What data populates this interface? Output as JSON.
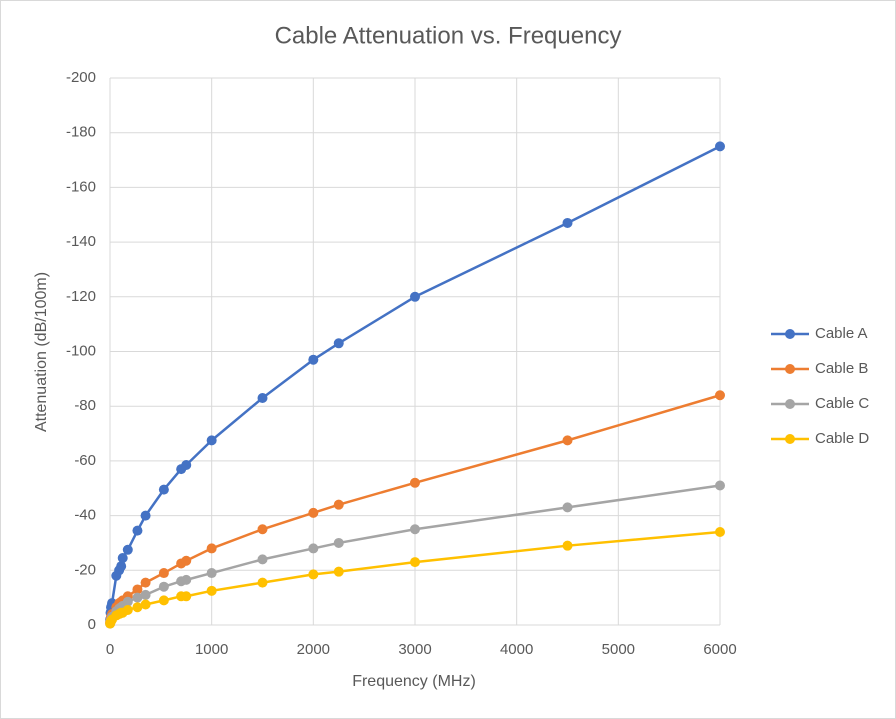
{
  "chart_data": {
    "type": "line",
    "title": "Cable Attenuation vs. Frequency",
    "x_label": "Frequency (MHz)",
    "y_label": "Attenuation (dB/100m)",
    "x": [
      1,
      5,
      10,
      20,
      62,
      90,
      110,
      125,
      175,
      270,
      350,
      530,
      700,
      750,
      1000,
      1500,
      2000,
      2250,
      3000,
      4500,
      6000
    ],
    "series": [
      {
        "name": "Cable A",
        "color": "#4472c4",
        "values": [
          -2,
          -4.5,
          -6.5,
          -8,
          -18,
          -20,
          -21.5,
          -24.5,
          -27.5,
          -34.5,
          -40,
          -49.5,
          -57,
          -58.5,
          -67.5,
          -83,
          -97,
          -103,
          -120,
          -147,
          -175
        ]
      },
      {
        "name": "Cable B",
        "color": "#ed7d31",
        "values": [
          -1,
          -2,
          -3,
          -4,
          -6.5,
          -8,
          -8.5,
          -9,
          -10.5,
          -13,
          -15.5,
          -19,
          -22.5,
          -23.5,
          -28,
          -35,
          -41,
          -44,
          -52,
          -67.5,
          -84
        ]
      },
      {
        "name": "Cable C",
        "color": "#a5a5a5",
        "values": [
          -0.5,
          -1.5,
          -2,
          -3,
          -5,
          -6,
          -6.5,
          -7,
          -8.5,
          -10,
          -11,
          -14,
          -16,
          -16.5,
          -19,
          -24,
          -28,
          -30,
          -35,
          -43,
          -51
        ]
      },
      {
        "name": "Cable D",
        "color": "#ffc000",
        "values": [
          -0.5,
          -1,
          -1.5,
          -2,
          -3.5,
          -4,
          -4.5,
          -4.5,
          -5.5,
          -6.5,
          -7.5,
          -9,
          -10.5,
          -10.5,
          -12.5,
          -15.5,
          -18.5,
          -19.5,
          -23,
          -29,
          -34
        ]
      }
    ],
    "xlim": [
      0,
      6000
    ],
    "xticks": [
      0,
      1000,
      2000,
      3000,
      4000,
      5000,
      6000
    ],
    "ylim": [
      0,
      -200
    ],
    "yticks": [
      0,
      -20,
      -40,
      -60,
      -80,
      -100,
      -120,
      -140,
      -160,
      -180,
      -200
    ],
    "grid": true,
    "legend": "right"
  }
}
